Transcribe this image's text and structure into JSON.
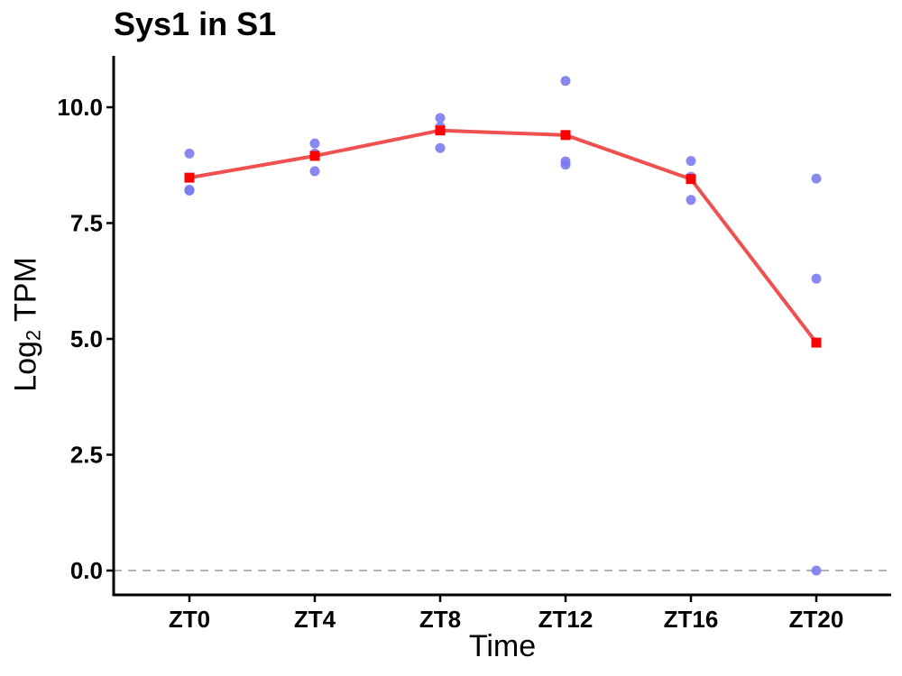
{
  "chart_data": {
    "type": "scatter",
    "title": "Sys1 in S1",
    "xlabel": "Time",
    "ylabel": {
      "main": "Log",
      "subscript": "2",
      "suffix": " TPM"
    },
    "categories": [
      "ZT0",
      "ZT4",
      "ZT8",
      "ZT12",
      "ZT16",
      "ZT20"
    ],
    "y_ticks": [
      {
        "value": 0,
        "label": "0.0"
      },
      {
        "value": 2.5,
        "label": "2.5"
      },
      {
        "value": 5,
        "label": "5.0"
      },
      {
        "value": 7.5,
        "label": "7.5"
      },
      {
        "value": 10,
        "label": "10.0"
      }
    ],
    "ylim": [
      -0.5,
      11.0
    ],
    "grid": false,
    "reference_line": {
      "y": 0,
      "style": "dashed",
      "color": "#b3b3b3"
    },
    "replicates": {
      "color": "#7b7bf0",
      "points": [
        {
          "x": "ZT0",
          "y": 9.0
        },
        {
          "x": "ZT0",
          "y": 8.22
        },
        {
          "x": "ZT0",
          "y": 8.2
        },
        {
          "x": "ZT4",
          "y": 9.22
        },
        {
          "x": "ZT4",
          "y": 9.0
        },
        {
          "x": "ZT4",
          "y": 8.62
        },
        {
          "x": "ZT8",
          "y": 9.77
        },
        {
          "x": "ZT8",
          "y": 9.58
        },
        {
          "x": "ZT8",
          "y": 9.12
        },
        {
          "x": "ZT12",
          "y": 10.57
        },
        {
          "x": "ZT12",
          "y": 8.83
        },
        {
          "x": "ZT12",
          "y": 8.76
        },
        {
          "x": "ZT16",
          "y": 8.84
        },
        {
          "x": "ZT16",
          "y": 8.5
        },
        {
          "x": "ZT16",
          "y": 8.0
        },
        {
          "x": "ZT20",
          "y": 8.46
        },
        {
          "x": "ZT20",
          "y": 6.3
        },
        {
          "x": "ZT20",
          "y": 0.0
        }
      ]
    },
    "mean_series": {
      "color": "#ef5050",
      "marker_color": "#ff0000",
      "values": [
        8.48,
        8.95,
        9.5,
        9.4,
        8.45,
        4.92
      ]
    }
  }
}
